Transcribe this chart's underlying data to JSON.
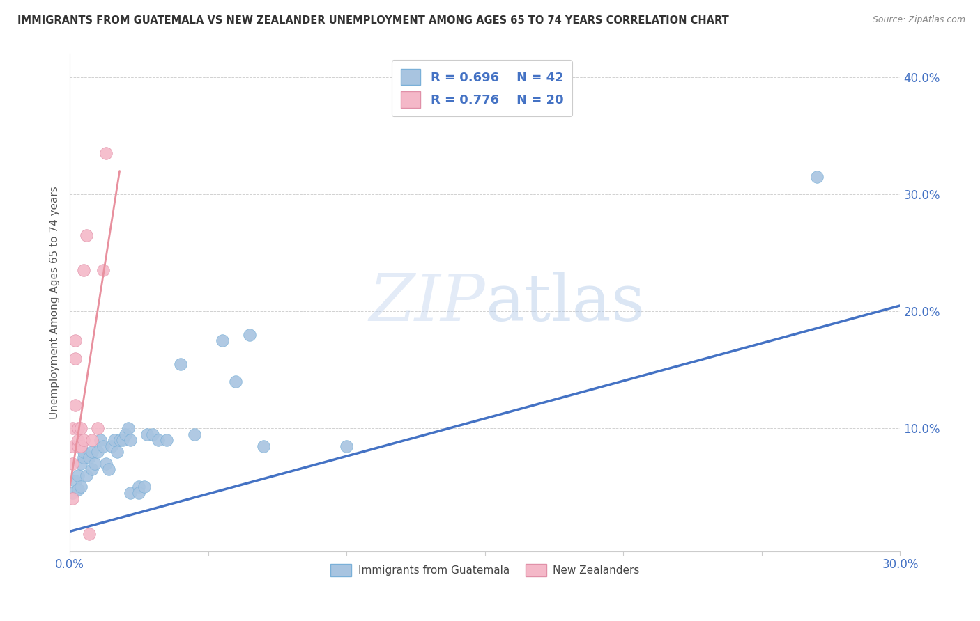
{
  "title": "IMMIGRANTS FROM GUATEMALA VS NEW ZEALANDER UNEMPLOYMENT AMONG AGES 65 TO 74 YEARS CORRELATION CHART",
  "source": "Source: ZipAtlas.com",
  "ylabel": "Unemployment Among Ages 65 to 74 years",
  "xlim": [
    0.0,
    0.3
  ],
  "ylim": [
    -0.005,
    0.42
  ],
  "ytick_vals": [
    0.1,
    0.2,
    0.3,
    0.4
  ],
  "xtick_vals": [
    0.0,
    0.05,
    0.1,
    0.15,
    0.2,
    0.25,
    0.3
  ],
  "legend_blue_label": "R = 0.696    N = 42",
  "legend_pink_label": "R = 0.776    N = 20",
  "legend_label_blue": "Immigrants from Guatemala",
  "legend_label_pink": "New Zealanders",
  "blue_scatter_color": "#a8c4e0",
  "pink_scatter_color": "#f4b8c8",
  "blue_line_color": "#4472c4",
  "pink_line_color": "#e8909e",
  "blue_points": [
    [
      0.001,
      0.045
    ],
    [
      0.002,
      0.055
    ],
    [
      0.003,
      0.048
    ],
    [
      0.003,
      0.06
    ],
    [
      0.004,
      0.05
    ],
    [
      0.004,
      0.07
    ],
    [
      0.005,
      0.075
    ],
    [
      0.005,
      0.08
    ],
    [
      0.006,
      0.06
    ],
    [
      0.007,
      0.075
    ],
    [
      0.008,
      0.065
    ],
    [
      0.008,
      0.08
    ],
    [
      0.009,
      0.07
    ],
    [
      0.01,
      0.08
    ],
    [
      0.011,
      0.09
    ],
    [
      0.012,
      0.085
    ],
    [
      0.013,
      0.07
    ],
    [
      0.014,
      0.065
    ],
    [
      0.015,
      0.085
    ],
    [
      0.016,
      0.09
    ],
    [
      0.017,
      0.08
    ],
    [
      0.018,
      0.09
    ],
    [
      0.019,
      0.09
    ],
    [
      0.02,
      0.095
    ],
    [
      0.021,
      0.1
    ],
    [
      0.022,
      0.045
    ],
    [
      0.022,
      0.09
    ],
    [
      0.025,
      0.05
    ],
    [
      0.025,
      0.045
    ],
    [
      0.027,
      0.05
    ],
    [
      0.028,
      0.095
    ],
    [
      0.03,
      0.095
    ],
    [
      0.032,
      0.09
    ],
    [
      0.035,
      0.09
    ],
    [
      0.04,
      0.155
    ],
    [
      0.045,
      0.095
    ],
    [
      0.055,
      0.175
    ],
    [
      0.06,
      0.14
    ],
    [
      0.065,
      0.18
    ],
    [
      0.07,
      0.085
    ],
    [
      0.1,
      0.085
    ],
    [
      0.27,
      0.315
    ]
  ],
  "pink_points": [
    [
      0.001,
      0.04
    ],
    [
      0.001,
      0.07
    ],
    [
      0.001,
      0.085
    ],
    [
      0.001,
      0.1
    ],
    [
      0.002,
      0.175
    ],
    [
      0.002,
      0.16
    ],
    [
      0.002,
      0.12
    ],
    [
      0.003,
      0.1
    ],
    [
      0.003,
      0.085
    ],
    [
      0.003,
      0.09
    ],
    [
      0.004,
      0.085
    ],
    [
      0.004,
      0.1
    ],
    [
      0.005,
      0.09
    ],
    [
      0.005,
      0.235
    ],
    [
      0.006,
      0.265
    ],
    [
      0.007,
      0.01
    ],
    [
      0.008,
      0.09
    ],
    [
      0.01,
      0.1
    ],
    [
      0.012,
      0.235
    ],
    [
      0.013,
      0.335
    ]
  ],
  "blue_line_x": [
    0.0,
    0.3
  ],
  "blue_line_y": [
    0.012,
    0.205
  ],
  "pink_line_x": [
    -0.001,
    0.018
  ],
  "pink_line_y": [
    0.035,
    0.32
  ],
  "watermark_zip": "ZIP",
  "watermark_atlas": "atlas",
  "background_color": "#ffffff",
  "grid_color": "#cccccc",
  "tick_color": "#4472c4",
  "legend_text_color": "#4472c4",
  "title_color": "#333333",
  "source_color": "#888888"
}
